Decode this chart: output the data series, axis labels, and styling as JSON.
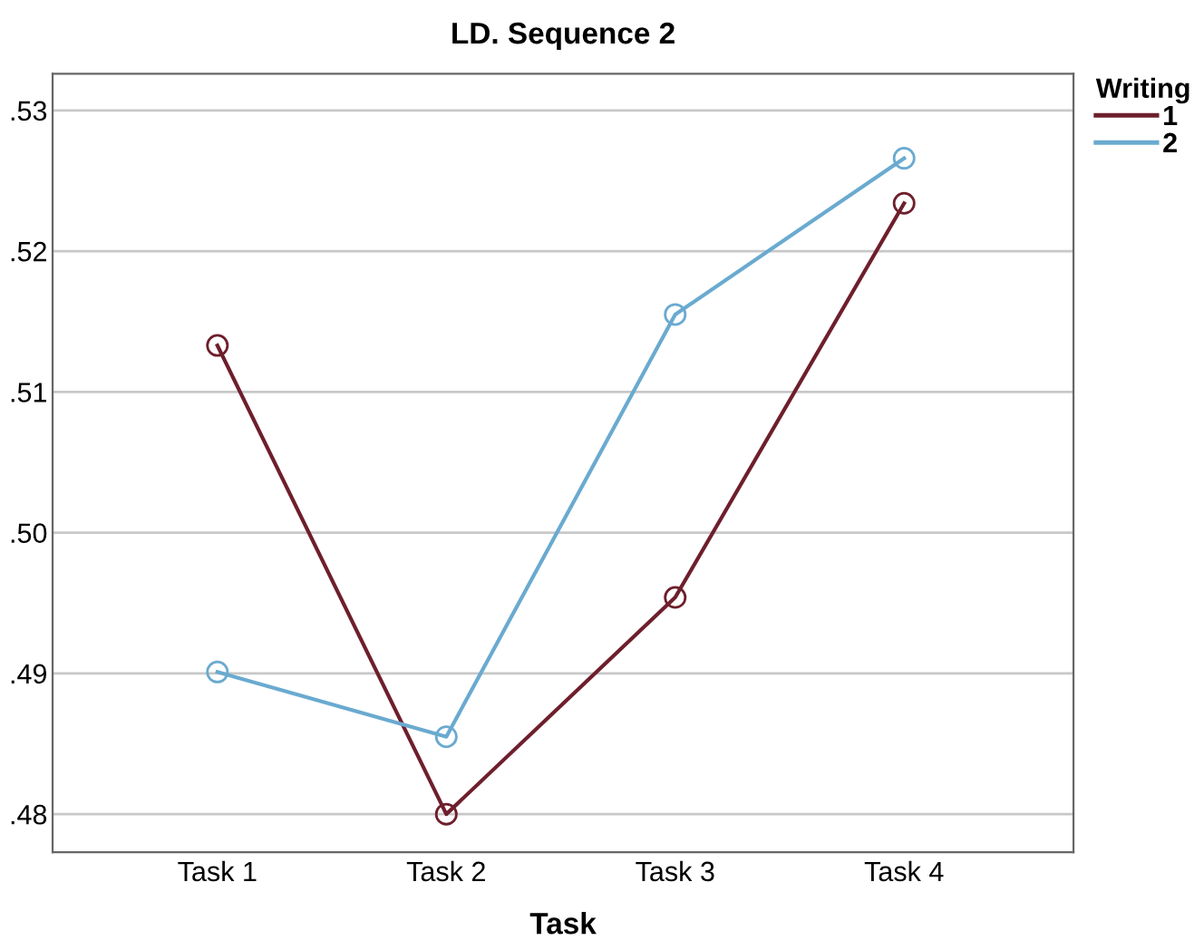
{
  "chart_data": {
    "type": "line",
    "title": "LD. Sequence 2",
    "xlabel": "Task",
    "legend_title": "Writing",
    "categories": [
      "Task 1",
      "Task 2",
      "Task 3",
      "Task 4"
    ],
    "series": [
      {
        "name": "1",
        "color": "#6e1f2c",
        "values": [
          0.5133,
          0.48,
          0.4954,
          0.5234
        ]
      },
      {
        "name": "2",
        "color": "#6aaad0",
        "values": [
          0.4901,
          0.4855,
          0.5155,
          0.5266
        ]
      }
    ],
    "ylim": [
      0.4773,
      0.5326
    ],
    "yticks": [
      {
        "value": 0.48,
        "label": ".48"
      },
      {
        "value": 0.49,
        "label": ".49"
      },
      {
        "value": 0.5,
        "label": ".50"
      },
      {
        "value": 0.51,
        "label": ".51"
      },
      {
        "value": 0.52,
        "label": ".52"
      },
      {
        "value": 0.53,
        "label": ".53"
      }
    ],
    "grid": "y",
    "legend": "top right",
    "marker": "circle",
    "line_style": "solid"
  }
}
